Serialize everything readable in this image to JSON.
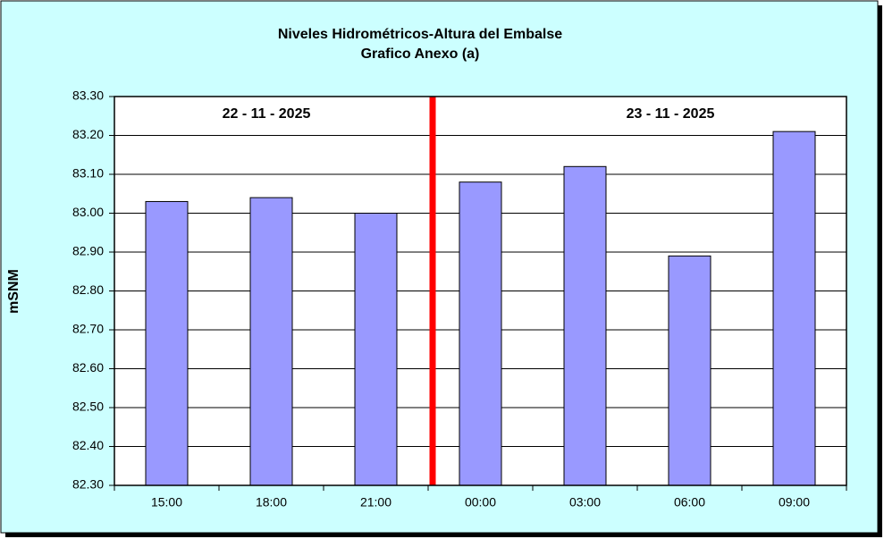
{
  "chart_data": {
    "type": "bar",
    "title": "Niveles Hidrométricos-Altura del Embalse",
    "subtitle": "Grafico Anexo (a)",
    "y_label": "mSNM",
    "annotations": [
      "22 - 11 - 2025",
      "23 - 11 - 2025"
    ],
    "categories": [
      "15:00",
      "18:00",
      "21:00",
      "00:00",
      "03:00",
      "06:00",
      "09:00"
    ],
    "values": [
      83.03,
      83.04,
      83.0,
      83.08,
      83.12,
      82.89,
      83.21
    ],
    "color": "#9999ff",
    "ylim": [
      82.3,
      83.3
    ],
    "yticks": [
      {
        "value": 82.3,
        "label": "82.30"
      },
      {
        "value": 82.4,
        "label": "82.40"
      },
      {
        "value": 82.5,
        "label": "82.50"
      },
      {
        "value": 82.6,
        "label": "82.60"
      },
      {
        "value": 82.7,
        "label": "82.70"
      },
      {
        "value": 82.8,
        "label": "82.80"
      },
      {
        "value": 82.9,
        "label": "82.90"
      },
      {
        "value": 83.0,
        "label": "83.00"
      },
      {
        "value": 83.1,
        "label": "83.10"
      },
      {
        "value": 83.2,
        "label": "83.20"
      },
      {
        "value": 83.3,
        "label": "83.30"
      }
    ],
    "grid": true
  }
}
